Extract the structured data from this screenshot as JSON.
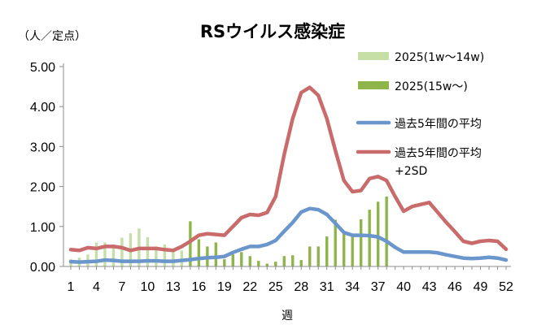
{
  "chart_data": {
    "type": "bar+line",
    "title": "RSウイルス感染症",
    "unit_label": "（人／定点）",
    "xlabel": "週",
    "ylim": [
      0,
      5
    ],
    "y_ticks": [
      "0.00",
      "1.00",
      "2.00",
      "3.00",
      "4.00",
      "5.00"
    ],
    "x_ticks": [
      "1",
      "4",
      "7",
      "10",
      "13",
      "16",
      "19",
      "22",
      "25",
      "28",
      "31",
      "34",
      "37",
      "40",
      "43",
      "46",
      "49",
      "52"
    ],
    "x_tick_weeks": [
      1,
      4,
      7,
      10,
      13,
      16,
      19,
      22,
      25,
      28,
      31,
      34,
      37,
      40,
      43,
      46,
      49,
      52
    ],
    "grid": false,
    "legend_position": "right",
    "colors": {
      "bar_early": "#c5dfa6",
      "bar_late": "#8db54a",
      "avg": "#6b96cc",
      "sd": "#c96b6a"
    },
    "series": [
      {
        "name": "2025(1w～14w)",
        "kind": "bar",
        "x": [
          1,
          2,
          3,
          4,
          5,
          6,
          7,
          8,
          9,
          10,
          11,
          12,
          13,
          14
        ],
        "values": [
          0.18,
          0.22,
          0.3,
          0.6,
          0.6,
          0.55,
          0.72,
          0.83,
          0.95,
          0.73,
          0.5,
          0.55,
          0.42,
          0.4
        ]
      },
      {
        "name": "2025(15w～)",
        "kind": "bar",
        "x": [
          15,
          16,
          17,
          18,
          19,
          20,
          21,
          22,
          23,
          24,
          25,
          26,
          27,
          28,
          29,
          30,
          31,
          32,
          33,
          34,
          35,
          36,
          37,
          38
        ],
        "values": [
          1.13,
          0.68,
          0.5,
          0.6,
          0.18,
          0.3,
          0.36,
          0.26,
          0.14,
          0.07,
          0.12,
          0.26,
          0.28,
          0.16,
          0.5,
          0.5,
          0.75,
          1.17,
          0.82,
          0.8,
          1.18,
          1.42,
          1.62,
          1.75
        ]
      },
      {
        "name": "過去5年間の平均",
        "kind": "line",
        "x": [
          1,
          2,
          3,
          4,
          5,
          6,
          7,
          8,
          9,
          10,
          11,
          12,
          13,
          14,
          15,
          16,
          17,
          18,
          19,
          20,
          21,
          22,
          23,
          24,
          25,
          26,
          27,
          28,
          29,
          30,
          31,
          32,
          33,
          34,
          35,
          36,
          37,
          38,
          39,
          40,
          41,
          42,
          43,
          44,
          45,
          46,
          47,
          48,
          49,
          50,
          51,
          52
        ],
        "values": [
          0.12,
          0.11,
          0.12,
          0.13,
          0.16,
          0.15,
          0.13,
          0.13,
          0.13,
          0.14,
          0.14,
          0.13,
          0.13,
          0.15,
          0.17,
          0.2,
          0.22,
          0.23,
          0.25,
          0.35,
          0.43,
          0.5,
          0.5,
          0.55,
          0.65,
          0.88,
          1.1,
          1.36,
          1.45,
          1.42,
          1.3,
          1.08,
          0.85,
          0.78,
          0.78,
          0.77,
          0.74,
          0.63,
          0.48,
          0.36,
          0.36,
          0.36,
          0.36,
          0.34,
          0.29,
          0.25,
          0.21,
          0.2,
          0.21,
          0.23,
          0.21,
          0.16
        ]
      },
      {
        "name": "過去5年間の平均\n+2SD",
        "kind": "line",
        "x": [
          1,
          2,
          3,
          4,
          5,
          6,
          7,
          8,
          9,
          10,
          11,
          12,
          13,
          14,
          15,
          16,
          17,
          18,
          19,
          20,
          21,
          22,
          23,
          24,
          25,
          26,
          27,
          28,
          29,
          30,
          31,
          32,
          33,
          34,
          35,
          36,
          37,
          38,
          39,
          40,
          41,
          42,
          43,
          44,
          45,
          46,
          47,
          48,
          49,
          50,
          51,
          52
        ],
        "values": [
          0.42,
          0.4,
          0.47,
          0.45,
          0.5,
          0.5,
          0.47,
          0.4,
          0.45,
          0.45,
          0.45,
          0.42,
          0.4,
          0.5,
          0.63,
          0.78,
          0.82,
          0.8,
          0.78,
          1.0,
          1.22,
          1.3,
          1.28,
          1.35,
          1.75,
          2.8,
          3.7,
          4.35,
          4.48,
          4.28,
          3.7,
          2.9,
          2.15,
          1.87,
          1.9,
          2.2,
          2.25,
          2.15,
          1.75,
          1.38,
          1.5,
          1.55,
          1.6,
          1.35,
          1.1,
          0.87,
          0.63,
          0.58,
          0.63,
          0.65,
          0.63,
          0.43
        ]
      }
    ]
  }
}
